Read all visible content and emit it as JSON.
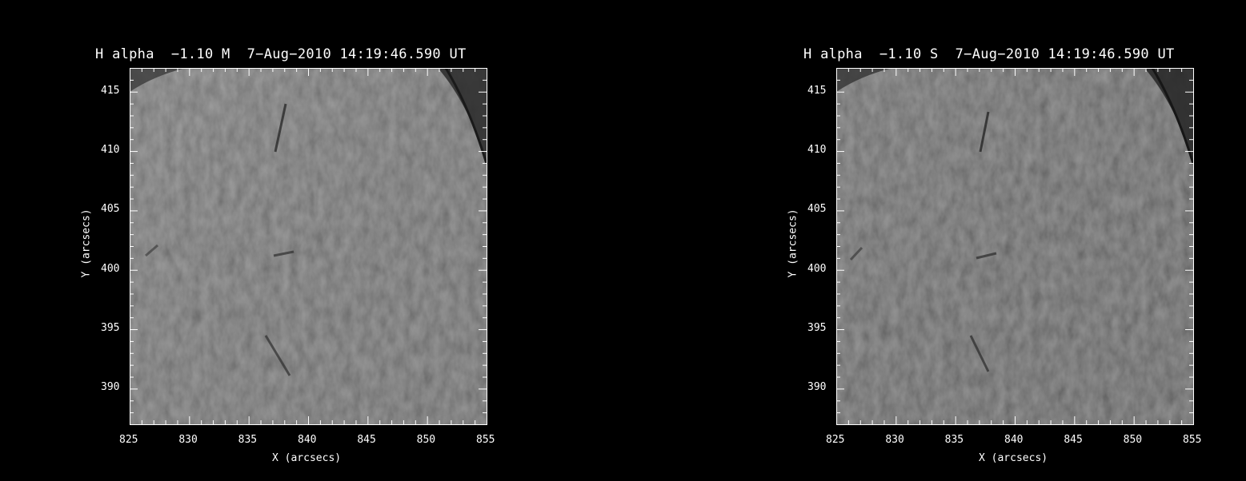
{
  "panels": [
    {
      "id": "left",
      "title": "H alpha  −1.10 M  7−Aug−2010 14:19:46.590 UT",
      "xlabel": "X (arcsecs)",
      "ylabel": "Y (arcsecs)",
      "xticks": [
        "825",
        "830",
        "835",
        "840",
        "845",
        "850",
        "855"
      ],
      "yticks": [
        "390",
        "395",
        "400",
        "405",
        "410",
        "415"
      ],
      "xlim": [
        825,
        855
      ],
      "ylim": [
        387,
        417
      ],
      "image_tone": "#5e5e5e"
    },
    {
      "id": "right",
      "title": "H alpha  −1.10 S  7−Aug−2010 14:19:46.590 UT",
      "xlabel": "X (arcsecs)",
      "ylabel": "Y (arcsecs)",
      "xticks": [
        "825",
        "830",
        "835",
        "840",
        "845",
        "850",
        "855"
      ],
      "yticks": [
        "390",
        "395",
        "400",
        "405",
        "410",
        "415"
      ],
      "xlim": [
        825,
        855
      ],
      "ylim": [
        387,
        417
      ],
      "image_tone": "#535353"
    }
  ]
}
